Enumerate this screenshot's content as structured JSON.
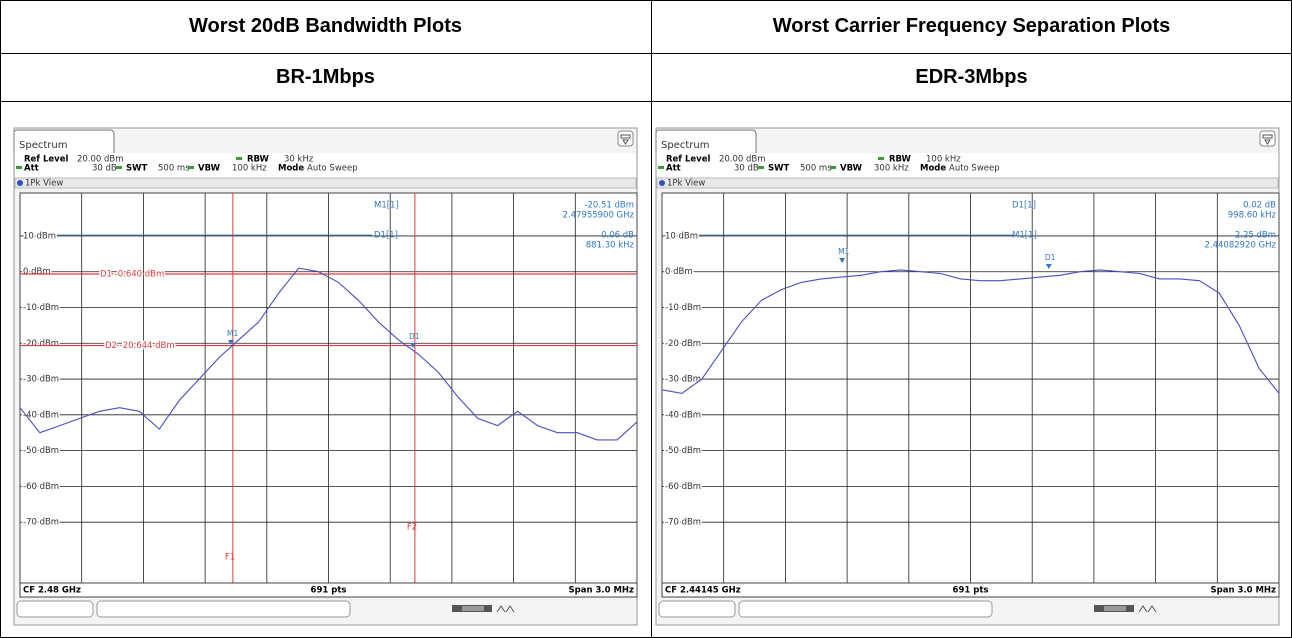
{
  "table": {
    "headers": [
      "Worst 20dB Bandwidth Plots",
      "Worst Carrier Frequency Separation Plots"
    ],
    "modes": [
      "BR-1Mbps",
      "EDR-3Mbps"
    ]
  },
  "plots": [
    {
      "tab": "Spectrum",
      "ref_level_label": "Ref Level",
      "ref_level": "20.00 dBm",
      "rbw_label": "RBW",
      "rbw": "30 kHz",
      "att_label": "Att",
      "att": "30 dB",
      "swt_label": "SWT",
      "swt": "500 ms",
      "vbw_label": "VBW",
      "vbw": "100 kHz",
      "mode_label": "Mode",
      "mode": "Auto Sweep",
      "view": "1Pk View",
      "marker_table": [
        {
          "name": "M1[1]",
          "lines": [
            "-20.51 dBm",
            "2.47955900 GHz"
          ]
        },
        {
          "name": "D1[1]",
          "lines": [
            "0.06 dB",
            "881.30 kHz"
          ]
        }
      ],
      "chart_data": {
        "type": "line",
        "ylim": [
          -87,
          22
        ],
        "yticks": [
          {
            "value": 10,
            "label": "10 dBm"
          },
          {
            "value": 0,
            "label": "0 dBm"
          },
          {
            "value": -10,
            "label": "-10 dBm"
          },
          {
            "value": -20,
            "label": "-20 dBm"
          },
          {
            "value": -30,
            "label": "-30 dBm"
          },
          {
            "value": -40,
            "label": "-40 dBm"
          },
          {
            "value": -50,
            "label": "-50 dBm"
          },
          {
            "value": -60,
            "label": "-60 dBm"
          },
          {
            "value": -70,
            "label": "-70 dBm"
          }
        ],
        "series": [
          {
            "color": "#4a4fc4",
            "values": [
              -38,
              -45,
              -43,
              -41,
              -39,
              -38,
              -39,
              -44,
              -36,
              -30,
              -24,
              -19,
              -14,
              -6,
              1,
              0,
              -3,
              -8,
              -14,
              -19,
              -23,
              -28,
              -35,
              -41,
              -43,
              -39,
              -43,
              -45,
              -45,
              -47,
              -47,
              -42
            ]
          }
        ],
        "display_lines": [
          {
            "label": "D1 -0.640 dBm",
            "value": -0.64
          },
          {
            "label": "D2 -20.644 dBm",
            "value": -20.644
          }
        ],
        "frequency_lines": [
          "F1",
          "F2"
        ],
        "markers": [
          "M1",
          "D1"
        ]
      },
      "footer": [
        "CF 2.48 GHz",
        "691 pts",
        "Span 3.0 MHz"
      ]
    },
    {
      "tab": "Spectrum",
      "ref_level_label": "Ref Level",
      "ref_level": "20.00 dBm",
      "rbw_label": "RBW",
      "rbw": "100 kHz",
      "att_label": "Att",
      "att": "30 dB",
      "swt_label": "SWT",
      "swt": "500 ms",
      "vbw_label": "VBW",
      "vbw": "300 kHz",
      "mode_label": "Mode",
      "mode": "Auto Sweep",
      "view": "1Pk View",
      "marker_table": [
        {
          "name": "D1[1]",
          "lines": [
            "0.02 dB",
            "998.60 kHz"
          ]
        },
        {
          "name": "M1[1]",
          "lines": [
            "2.25 dBm",
            "2.44082920 GHz"
          ]
        }
      ],
      "chart_data": {
        "type": "line",
        "ylim": [
          -87,
          22
        ],
        "yticks": [
          {
            "value": 10,
            "label": "10 dBm"
          },
          {
            "value": 0,
            "label": "0 dBm"
          },
          {
            "value": -10,
            "label": "-10 dBm"
          },
          {
            "value": -20,
            "label": "-20 dBm"
          },
          {
            "value": -30,
            "label": "-30 dBm"
          },
          {
            "value": -40,
            "label": "-40 dBm"
          },
          {
            "value": -50,
            "label": "-50 dBm"
          },
          {
            "value": -60,
            "label": "-60 dBm"
          },
          {
            "value": -70,
            "label": "-70 dBm"
          }
        ],
        "series": [
          {
            "color": "#4a4fc4",
            "values": [
              -33,
              -34,
              -30,
              -22,
              -14,
              -8,
              -5,
              -3,
              -2,
              -1.5,
              -1,
              0,
              0.5,
              0,
              -0.5,
              -2,
              -2.5,
              -2.5,
              -2,
              -1.5,
              -1,
              0,
              0.5,
              0,
              -0.5,
              -2,
              -2,
              -2.5,
              -6,
              -15,
              -27,
              -34
            ]
          }
        ],
        "display_lines": [],
        "frequency_lines": [],
        "markers": [
          "M1",
          "D1"
        ]
      },
      "footer": [
        "CF 2.44145 GHz",
        "691 pts",
        "Span 3.0 MHz"
      ]
    }
  ]
}
